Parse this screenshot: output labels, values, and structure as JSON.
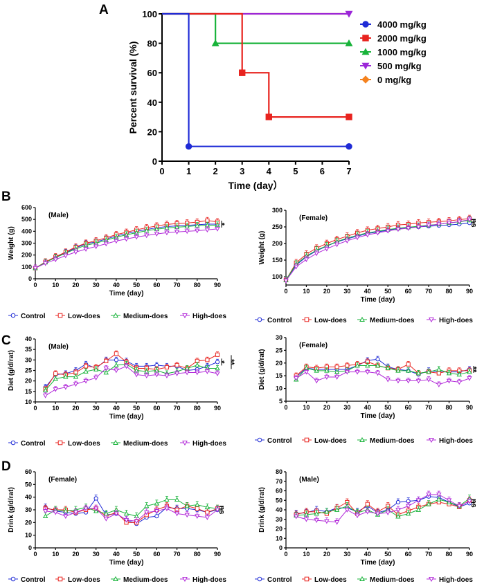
{
  "panels": {
    "A": "A",
    "B": "B",
    "C": "C",
    "D": "D"
  },
  "chart_data": [
    {
      "id": "A",
      "type": "line",
      "step": true,
      "xlabel": "Time (day）",
      "ylabel": "Percent survival (%)",
      "xlim": [
        0,
        7
      ],
      "ylim": [
        0,
        100
      ],
      "xticks": [
        0,
        1,
        2,
        3,
        4,
        5,
        6,
        7
      ],
      "yticks": [
        0,
        20,
        40,
        60,
        80,
        100
      ],
      "legend_position": "right",
      "series": [
        {
          "name": "4000 mg/kg",
          "color": "#1f2bd6",
          "marker": "circle",
          "x": [
            0,
            1,
            7
          ],
          "y": [
            100,
            10,
            10
          ],
          "markers_x": [
            1,
            7
          ],
          "markers_y": [
            10,
            10
          ]
        },
        {
          "name": "2000 mg/kg",
          "color": "#e8231f",
          "marker": "square",
          "x": [
            0,
            3,
            4,
            7
          ],
          "y": [
            100,
            60,
            30,
            30
          ],
          "markers_x": [
            3,
            4,
            7
          ],
          "markers_y": [
            60,
            30,
            30
          ]
        },
        {
          "name": "1000 mg/kg",
          "color": "#18b33a",
          "marker": "triangle",
          "x": [
            0,
            2,
            7
          ],
          "y": [
            100,
            80,
            80
          ],
          "markers_x": [
            2,
            7
          ],
          "markers_y": [
            80,
            80
          ]
        },
        {
          "name": "500  mg/kg",
          "color": "#9b27d8",
          "marker": "triangle-down",
          "x": [
            0,
            7
          ],
          "y": [
            100,
            100
          ],
          "markers_x": [
            7
          ],
          "markers_y": [
            100
          ]
        },
        {
          "name": "0 mg/kg",
          "color": "#f5821f",
          "marker": "diamond",
          "x": [
            0,
            7
          ],
          "y": [
            100,
            100
          ],
          "markers_x": [],
          "markers_y": []
        }
      ]
    },
    {
      "id": "B-male",
      "type": "line",
      "label": "(Male)",
      "xlabel": "Time (day)",
      "ylabel": "Weight (g)",
      "xlim": [
        0,
        90
      ],
      "ylim": [
        0,
        600
      ],
      "xticks": [
        0,
        10,
        20,
        30,
        40,
        50,
        60,
        70,
        80,
        90
      ],
      "yticks": [
        0,
        100,
        200,
        300,
        400,
        500,
        600
      ],
      "x": [
        0,
        5,
        10,
        15,
        20,
        25,
        30,
        35,
        40,
        45,
        50,
        55,
        60,
        65,
        70,
        75,
        80,
        85,
        90
      ],
      "series": [
        {
          "name": "Control",
          "values": [
            90,
            140,
            180,
            220,
            260,
            295,
            310,
            335,
            360,
            380,
            400,
            415,
            430,
            440,
            445,
            450,
            455,
            460,
            460
          ]
        },
        {
          "name": "Low-does",
          "values": [
            90,
            142,
            185,
            225,
            268,
            300,
            320,
            345,
            372,
            392,
            412,
            430,
            445,
            458,
            465,
            470,
            478,
            490,
            480
          ]
        },
        {
          "name": "Medium-does",
          "values": [
            90,
            138,
            178,
            215,
            252,
            282,
            300,
            325,
            350,
            370,
            388,
            405,
            418,
            428,
            435,
            440,
            448,
            450,
            452
          ]
        },
        {
          "name": "High-does",
          "values": [
            90,
            130,
            162,
            195,
            225,
            250,
            272,
            295,
            318,
            335,
            352,
            365,
            378,
            388,
            395,
            400,
            405,
            412,
            420
          ]
        }
      ],
      "significance": "*"
    },
    {
      "id": "B-female",
      "type": "line",
      "label": "(Female)",
      "xlabel": "Time (day)",
      "ylabel": "Weight (g)",
      "xlim": [
        0,
        90
      ],
      "ylim": [
        75,
        300
      ],
      "xticks": [
        0,
        10,
        20,
        30,
        40,
        50,
        60,
        70,
        80,
        90
      ],
      "yticks": [
        100,
        150,
        200,
        250,
        300
      ],
      "x": [
        0,
        5,
        10,
        15,
        20,
        25,
        30,
        35,
        40,
        45,
        50,
        55,
        60,
        65,
        70,
        75,
        80,
        85,
        90
      ],
      "series": [
        {
          "name": "Control",
          "values": [
            90,
            135,
            160,
            178,
            192,
            205,
            214,
            222,
            230,
            235,
            240,
            245,
            248,
            250,
            252,
            254,
            256,
            258,
            262
          ]
        },
        {
          "name": "Low-does",
          "values": [
            90,
            142,
            168,
            186,
            200,
            212,
            222,
            232,
            240,
            245,
            250,
            256,
            258,
            262,
            264,
            266,
            268,
            272,
            275
          ]
        },
        {
          "name": "Medium-does",
          "values": [
            90,
            138,
            162,
            180,
            193,
            206,
            216,
            225,
            232,
            237,
            242,
            246,
            249,
            252,
            255,
            258,
            262,
            265,
            270
          ]
        },
        {
          "name": "High-does",
          "values": [
            88,
            130,
            152,
            170,
            184,
            197,
            208,
            218,
            226,
            232,
            238,
            243,
            246,
            250,
            254,
            258,
            262,
            266,
            272
          ]
        }
      ],
      "significance": "ns"
    },
    {
      "id": "C-male",
      "type": "line",
      "label": "(Male)",
      "xlabel": "Time (day)",
      "ylabel": "Diet (g/d/rat)",
      "xlim": [
        0,
        90
      ],
      "ylim": [
        10,
        40
      ],
      "xticks": [
        0,
        10,
        20,
        30,
        40,
        50,
        60,
        70,
        80,
        90
      ],
      "yticks": [
        10,
        15,
        20,
        25,
        30,
        35,
        40
      ],
      "x": [
        5,
        10,
        15,
        20,
        25,
        30,
        35,
        40,
        45,
        50,
        55,
        60,
        65,
        70,
        75,
        80,
        85,
        90
      ],
      "series": [
        {
          "name": "Control",
          "values": [
            17,
            23,
            23.5,
            25,
            28,
            26,
            30,
            30,
            29.5,
            27,
            27,
            27.5,
            27,
            27,
            25,
            25.5,
            27,
            29
          ]
        },
        {
          "name": "Low-does",
          "values": [
            16,
            23.5,
            23,
            24,
            27,
            26.5,
            29.5,
            33,
            29,
            26,
            26,
            25.5,
            26.5,
            27.5,
            26,
            29.5,
            30,
            32.5
          ]
        },
        {
          "name": "Medium-does",
          "values": [
            15.5,
            21,
            22,
            22,
            24.5,
            25.5,
            24,
            27.5,
            28,
            25,
            24.5,
            25,
            23.5,
            24.5,
            26,
            27.5,
            26,
            26
          ]
        },
        {
          "name": "High-does",
          "values": [
            13,
            16,
            17,
            18.5,
            20,
            21.5,
            26,
            25,
            27,
            23,
            22.5,
            23,
            22.5,
            23.5,
            24,
            24,
            24.5,
            23.5
          ]
        }
      ],
      "significance": [
        "*",
        "**"
      ]
    },
    {
      "id": "C-female",
      "type": "line",
      "label": "(Female)",
      "xlabel": "Time (day)",
      "ylabel": "Diet (g/d/rat)",
      "xlim": [
        0,
        90
      ],
      "ylim": [
        5,
        30
      ],
      "xticks": [
        0,
        10,
        20,
        30,
        40,
        50,
        60,
        70,
        80,
        90
      ],
      "yticks": [
        5,
        10,
        15,
        20,
        25,
        30
      ],
      "x": [
        5,
        10,
        15,
        20,
        25,
        30,
        35,
        40,
        45,
        50,
        55,
        60,
        65,
        70,
        75,
        80,
        85,
        90
      ],
      "series": [
        {
          "name": "Control",
          "values": [
            14.5,
            18,
            17.5,
            17.5,
            17.5,
            17.5,
            19,
            21,
            21.5,
            18.5,
            17.5,
            17,
            15.5,
            17,
            16.5,
            16.5,
            16.5,
            17.5
          ]
        },
        {
          "name": "Low-does",
          "values": [
            15,
            18.5,
            18,
            18.5,
            18.5,
            19,
            19.5,
            20.5,
            19,
            18,
            17.5,
            19.5,
            16,
            16.5,
            16,
            17,
            17,
            17
          ]
        },
        {
          "name": "Medium-does",
          "values": [
            13.5,
            18,
            17,
            17,
            16.5,
            17,
            19,
            19,
            19,
            18,
            17,
            17,
            16,
            16.5,
            17.5,
            16,
            15.5,
            16.5
          ]
        },
        {
          "name": "High-does",
          "values": [
            14,
            16.5,
            13,
            14.5,
            14.5,
            16.5,
            16.5,
            16.5,
            16,
            13.5,
            13,
            13,
            13,
            13.5,
            11.5,
            13,
            12.5,
            14
          ]
        }
      ],
      "significance": "**"
    },
    {
      "id": "D-female",
      "type": "line",
      "label": "(Female)",
      "xlabel": "Time (day)",
      "ylabel": "Drink (g/d/rat)",
      "xlim": [
        0,
        90
      ],
      "ylim": [
        0,
        60
      ],
      "xticks": [
        0,
        10,
        20,
        30,
        40,
        50,
        60,
        70,
        80,
        90
      ],
      "yticks": [
        0,
        10,
        20,
        30,
        40,
        50,
        60
      ],
      "x": [
        5,
        10,
        15,
        20,
        25,
        30,
        35,
        40,
        45,
        50,
        55,
        60,
        65,
        70,
        75,
        80,
        85,
        90
      ],
      "series": [
        {
          "name": "Control",
          "values": [
            32,
            29,
            28,
            27,
            28,
            39,
            26,
            27,
            22,
            19,
            24,
            25,
            32,
            31,
            31,
            30,
            28,
            30
          ]
        },
        {
          "name": "Low-does",
          "values": [
            31,
            30,
            30,
            28,
            30,
            31,
            25,
            28,
            20,
            20,
            26,
            30,
            33,
            30,
            33,
            31,
            28,
            31
          ]
        },
        {
          "name": "Medium-does",
          "values": [
            25,
            30,
            29,
            30,
            32,
            29,
            27,
            30,
            27,
            25,
            33,
            35,
            38,
            38,
            33,
            34,
            32,
            31
          ]
        },
        {
          "name": "High-does",
          "values": [
            29,
            28,
            25,
            28,
            31,
            31,
            23,
            27,
            22,
            21,
            28,
            29,
            31,
            27,
            26,
            25,
            24,
            30
          ]
        }
      ],
      "significance": "ns"
    },
    {
      "id": "D-male",
      "type": "line",
      "label": "(Male)",
      "xlabel": "Time (day)",
      "ylabel": "Drink (g/d/rat)",
      "xlim": [
        0,
        90
      ],
      "ylim": [
        0,
        80
      ],
      "xticks": [
        0,
        10,
        20,
        30,
        40,
        50,
        60,
        70,
        80,
        90
      ],
      "yticks": [
        0,
        10,
        20,
        30,
        40,
        50,
        60,
        70,
        80
      ],
      "x": [
        5,
        10,
        15,
        20,
        25,
        30,
        35,
        40,
        45,
        50,
        55,
        60,
        65,
        70,
        75,
        80,
        85,
        90
      ],
      "series": [
        {
          "name": "Control",
          "values": [
            36,
            37,
            40,
            38,
            42,
            42,
            38,
            44,
            37,
            40,
            48,
            49,
            50,
            54,
            53,
            48,
            43,
            47
          ]
        },
        {
          "name": "Low-does",
          "values": [
            35,
            38,
            38,
            36,
            42,
            48,
            36,
            46,
            38,
            44,
            35,
            39,
            43,
            46,
            48,
            46,
            43,
            50
          ]
        },
        {
          "name": "Medium-does",
          "values": [
            34,
            35,
            36,
            38,
            40,
            44,
            37,
            40,
            35,
            40,
            33,
            36,
            40,
            46,
            51,
            48,
            44,
            52
          ]
        },
        {
          "name": "High-does",
          "values": [
            33,
            30,
            29,
            28,
            27,
            40,
            34,
            38,
            36,
            37,
            40,
            44,
            50,
            56,
            56,
            50,
            44,
            49
          ]
        }
      ],
      "significance": "ns"
    }
  ],
  "dose_legend": {
    "items": [
      {
        "name": "Control",
        "color": "#1f2bd6",
        "marker": "circle"
      },
      {
        "name": "Low-does",
        "color": "#e8231f",
        "marker": "square"
      },
      {
        "name": "Medium-does",
        "color": "#18b33a",
        "marker": "triangle"
      },
      {
        "name": "High-does",
        "color": "#b22ad9",
        "marker": "triangle-down"
      }
    ]
  }
}
